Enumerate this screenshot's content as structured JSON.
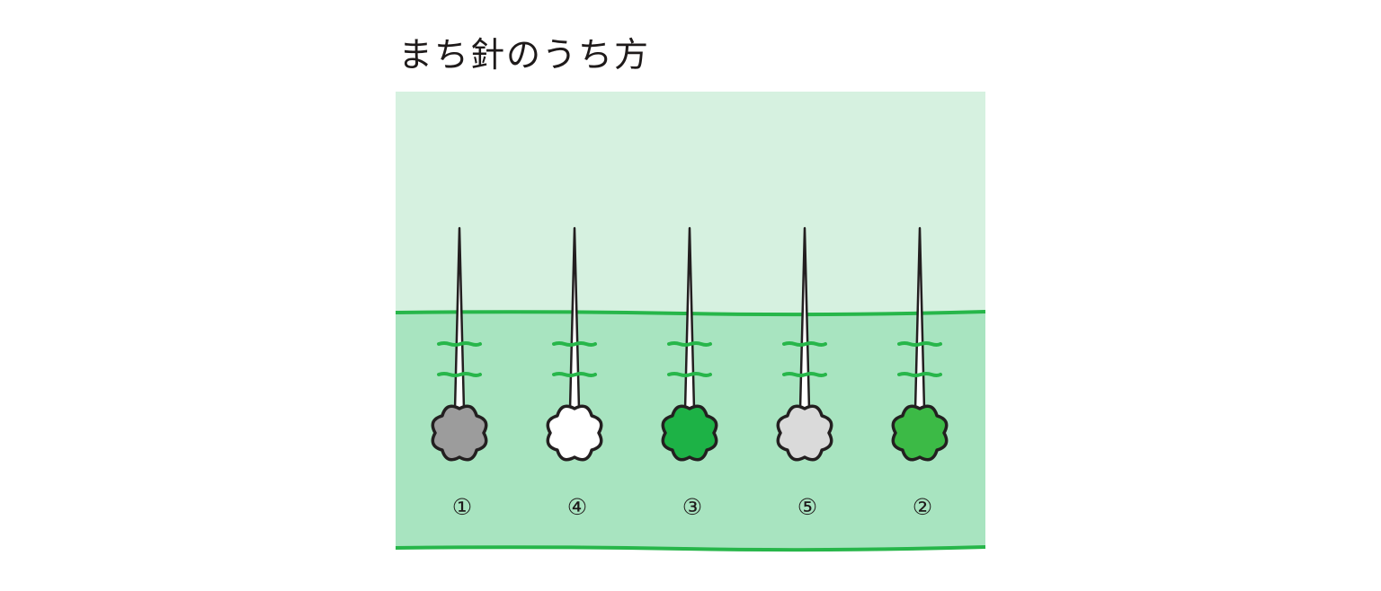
{
  "title": "まち針のうち方",
  "colors": {
    "fabric_top": "#d6f1e0",
    "fabric_bottom": "#a8e4c0",
    "edge_line": "#27b64a",
    "outline": "#231f20"
  },
  "pins": [
    {
      "label": "①",
      "head_color": "#9c9c9c"
    },
    {
      "label": "④",
      "head_color": "#ffffff"
    },
    {
      "label": "③",
      "head_color": "#1db246"
    },
    {
      "label": "⑤",
      "head_color": "#dadada"
    },
    {
      "label": "②",
      "head_color": "#3cba46"
    }
  ]
}
